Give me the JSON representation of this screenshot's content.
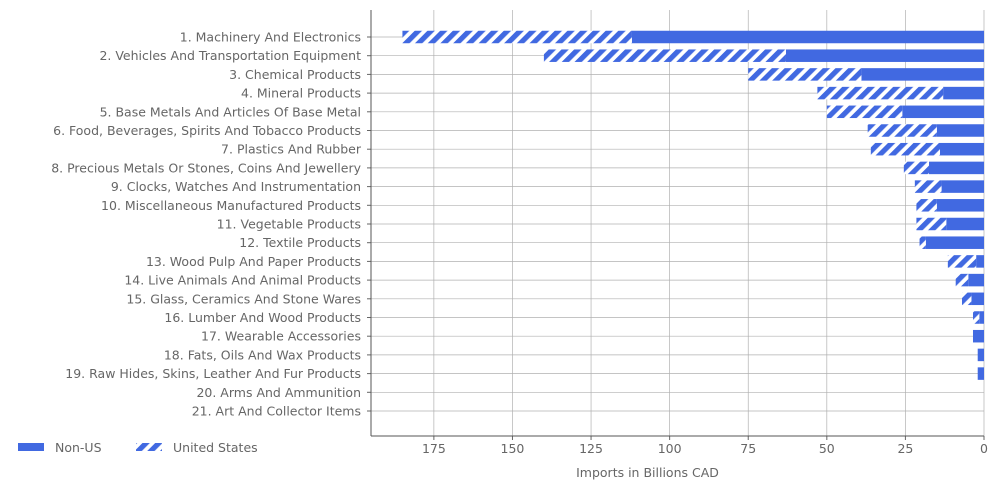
{
  "chart_data": {
    "type": "bar",
    "orientation": "horizontal",
    "stacked": true,
    "xaxis_inverted": true,
    "categories": [
      "1. Machinery And Electronics",
      "2. Vehicles And Transportation Equipment",
      "3. Chemical Products",
      "4. Mineral Products",
      "5. Base Metals And Articles Of Base Metal",
      "6. Food, Beverages, Spirits And Tobacco Products",
      "7. Plastics And Rubber",
      "8. Precious Metals Or Stones, Coins And Jewellery",
      "9. Clocks, Watches And Instrumentation",
      "10. Miscellaneous Manufactured Products",
      "11. Vegetable Products",
      "12. Textile Products",
      "13. Wood Pulp And Paper Products",
      "14. Live Animals And Animal Products",
      "15. Glass, Ceramics And Stone Wares",
      "16. Lumber And Wood Products",
      "17. Wearable Accessories",
      "18. Fats, Oils And Wax Products",
      "19. Raw Hides, Skins, Leather And Fur Products",
      "20. Arms And Ammunition",
      "21. Art And Collector Items"
    ],
    "series": [
      {
        "name": "Non-US",
        "color": "#4169e1",
        "pattern": "solid",
        "values": [
          112,
          63,
          39,
          13,
          26,
          15,
          14,
          17.5,
          13.5,
          15,
          12,
          18.5,
          2.5,
          5,
          4,
          1.5,
          3.5,
          2,
          2,
          0,
          0
        ]
      },
      {
        "name": "United States",
        "color": "#4169e1",
        "pattern": "hatch",
        "values": [
          73,
          77,
          36,
          40,
          24,
          22,
          22,
          8,
          8.5,
          6.5,
          9.5,
          2,
          9,
          4,
          3,
          2,
          0,
          0,
          0,
          0,
          0
        ]
      }
    ],
    "xlabel": "Imports in Billions CAD",
    "ylabel": "",
    "xlim": [
      195,
      0
    ],
    "xticks": [
      175,
      150,
      125,
      100,
      75,
      50,
      25,
      0
    ],
    "grid": true,
    "legend_position": "bottom-left"
  }
}
